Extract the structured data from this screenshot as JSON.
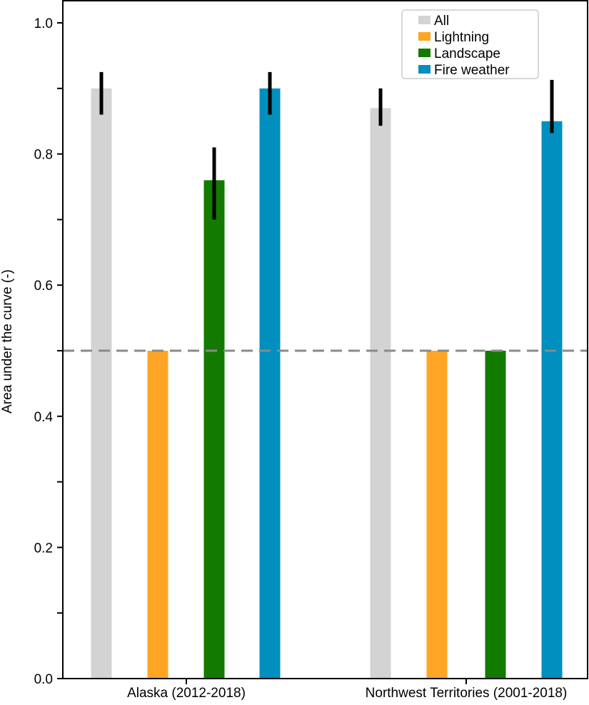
{
  "chart_data": {
    "type": "bar",
    "title": "",
    "xlabel": "",
    "ylabel": "Area under the curve (-)",
    "categories": [
      "Alaska (2012-2018)",
      "Northwest Territories (2001-2018)"
    ],
    "ylim": [
      0.0,
      1.0
    ],
    "yticks_labeled": [
      "0.0",
      "0.2",
      "0.4",
      "0.6",
      "0.8",
      "1.0"
    ],
    "reference_line": {
      "y": 0.5,
      "style": "dashed",
      "color": "#8a8a8a"
    },
    "series": [
      {
        "name": "All",
        "color": "#d3d3d3",
        "values": [
          0.9,
          0.87
        ],
        "error_low": [
          0.86,
          0.843
        ],
        "error_high": [
          0.925,
          0.9
        ]
      },
      {
        "name": "Lightning",
        "color": "#ffa526",
        "values": [
          0.5,
          0.5
        ],
        "error_low": [
          null,
          null
        ],
        "error_high": [
          null,
          null
        ]
      },
      {
        "name": "Landscape",
        "color": "#137a00",
        "values": [
          0.76,
          0.5
        ],
        "error_low": [
          0.7,
          null
        ],
        "error_high": [
          0.81,
          null
        ]
      },
      {
        "name": "Fire weather",
        "color": "#008fbe",
        "values": [
          0.9,
          0.85
        ],
        "error_low": [
          0.86,
          0.832
        ],
        "error_high": [
          0.925,
          0.913
        ]
      }
    ],
    "legend": {
      "position": "top-right"
    },
    "grid": false
  }
}
